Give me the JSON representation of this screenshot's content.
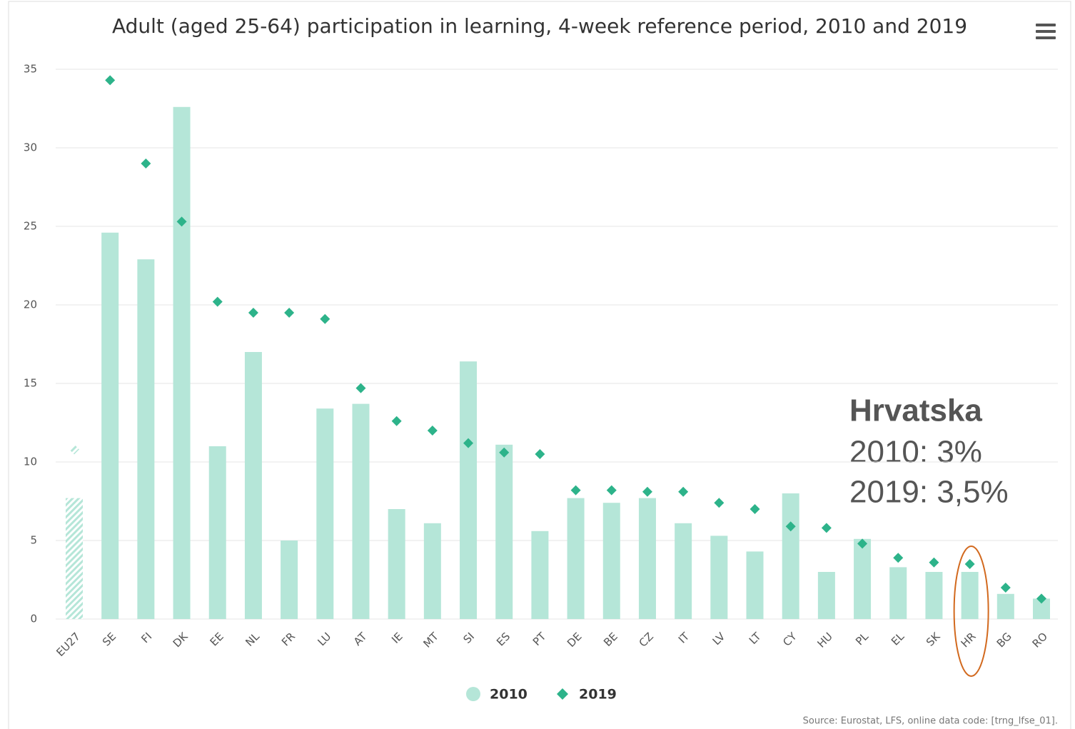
{
  "chart_data": {
    "type": "bar_scatter",
    "title": "Adult (aged 25-64) participation in learning, 4-week reference period, 2010 and 2019",
    "categories": [
      "EU27",
      "SE",
      "FI",
      "DK",
      "EE",
      "NL",
      "FR",
      "LU",
      "AT",
      "IE",
      "MT",
      "SI",
      "ES",
      "PT",
      "DE",
      "BE",
      "CZ",
      "IT",
      "LV",
      "LT",
      "CY",
      "HU",
      "PL",
      "EL",
      "SK",
      "HR",
      "BG",
      "RO"
    ],
    "series": [
      {
        "name": "2010",
        "type": "bar",
        "color": "#b5e6d8",
        "values": [
          7.7,
          24.6,
          22.9,
          32.6,
          11.0,
          17.0,
          5.0,
          13.4,
          13.7,
          7.0,
          6.1,
          16.4,
          11.1,
          5.6,
          7.7,
          7.4,
          7.7,
          6.1,
          5.3,
          4.3,
          8.0,
          3.0,
          5.1,
          3.3,
          3.0,
          3.0,
          1.6,
          1.3
        ]
      },
      {
        "name": "2019",
        "type": "scatter",
        "color": "#2db38a",
        "values": [
          10.8,
          34.3,
          29.0,
          25.3,
          20.2,
          19.5,
          19.5,
          19.1,
          14.7,
          12.6,
          12.0,
          11.2,
          10.6,
          10.5,
          8.2,
          8.2,
          8.1,
          8.1,
          7.4,
          7.0,
          5.9,
          5.8,
          4.8,
          3.9,
          3.6,
          3.5,
          2.0,
          1.3
        ]
      }
    ],
    "hatched": [
      0
    ],
    "highlight_category": 25,
    "highlight_color": "#d2691e",
    "ylim": [
      0,
      35
    ],
    "yticks": [
      0,
      5,
      10,
      15,
      20,
      25,
      30,
      35
    ],
    "grid": true,
    "legend": "bottom",
    "annotation": {
      "title": "Hrvatska",
      "lines": [
        "2010: 3%",
        "2019: 3,5%"
      ]
    },
    "source": "Source: Eurostat, LFS, online data code: [trng_lfse_01]."
  }
}
